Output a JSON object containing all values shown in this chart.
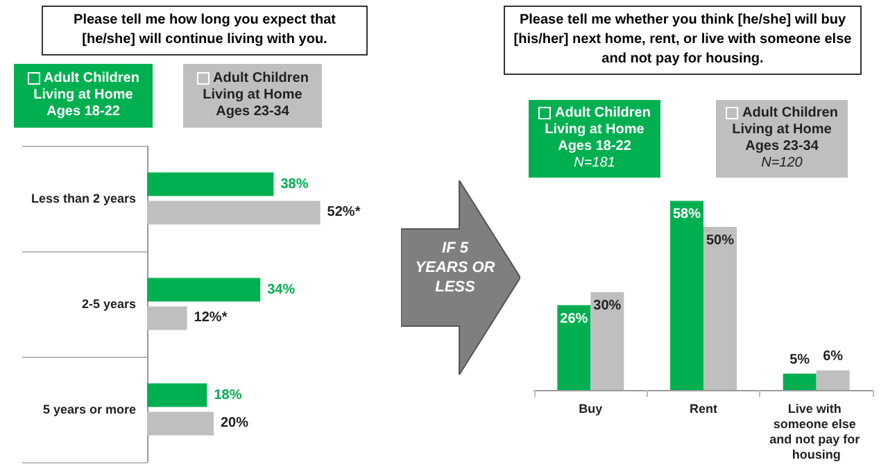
{
  "chart_data": [
    {
      "type": "bar",
      "orientation": "horizontal",
      "title": "Please tell me how long you expect that [he/she] will continue living with you.",
      "categories": [
        "Less than 2 years",
        "2-5 years",
        "5 years or more"
      ],
      "legend": "top left",
      "series": [
        {
          "name": "Adult Children Living at Home Ages 18-22",
          "color": "#00b050",
          "values": [
            38,
            34,
            18
          ],
          "value_labels": [
            "38%",
            "34%",
            "18%"
          ]
        },
        {
          "name": "Adult Children Living at Home Ages 23-34",
          "color": "#bfbfbf",
          "values": [
            52,
            12,
            20
          ],
          "value_labels": [
            "52%*",
            "12%*",
            "20%"
          ]
        }
      ]
    },
    {
      "type": "bar",
      "title": "Please tell me whether you think [he/she] will buy [his/her] next home, rent, or live with someone else and not pay for housing.",
      "categories": [
        "Buy",
        "Rent",
        "Live with someone else and not pay for housing"
      ],
      "legend": "top",
      "annotations": [
        "N=181",
        "N=120",
        "IF 5 YEARS OR LESS"
      ],
      "series": [
        {
          "name": "Adult Children Living at Home Ages 18-22",
          "color": "#00b050",
          "values": [
            26,
            58,
            5
          ],
          "value_labels": [
            "26%",
            "58%",
            "5%"
          ]
        },
        {
          "name": "Adult Children Living at Home Ages 23-34",
          "color": "#bfbfbf",
          "values": [
            30,
            50,
            6
          ],
          "value_labels": [
            "30%",
            "50%",
            "6%"
          ]
        }
      ]
    }
  ]
}
